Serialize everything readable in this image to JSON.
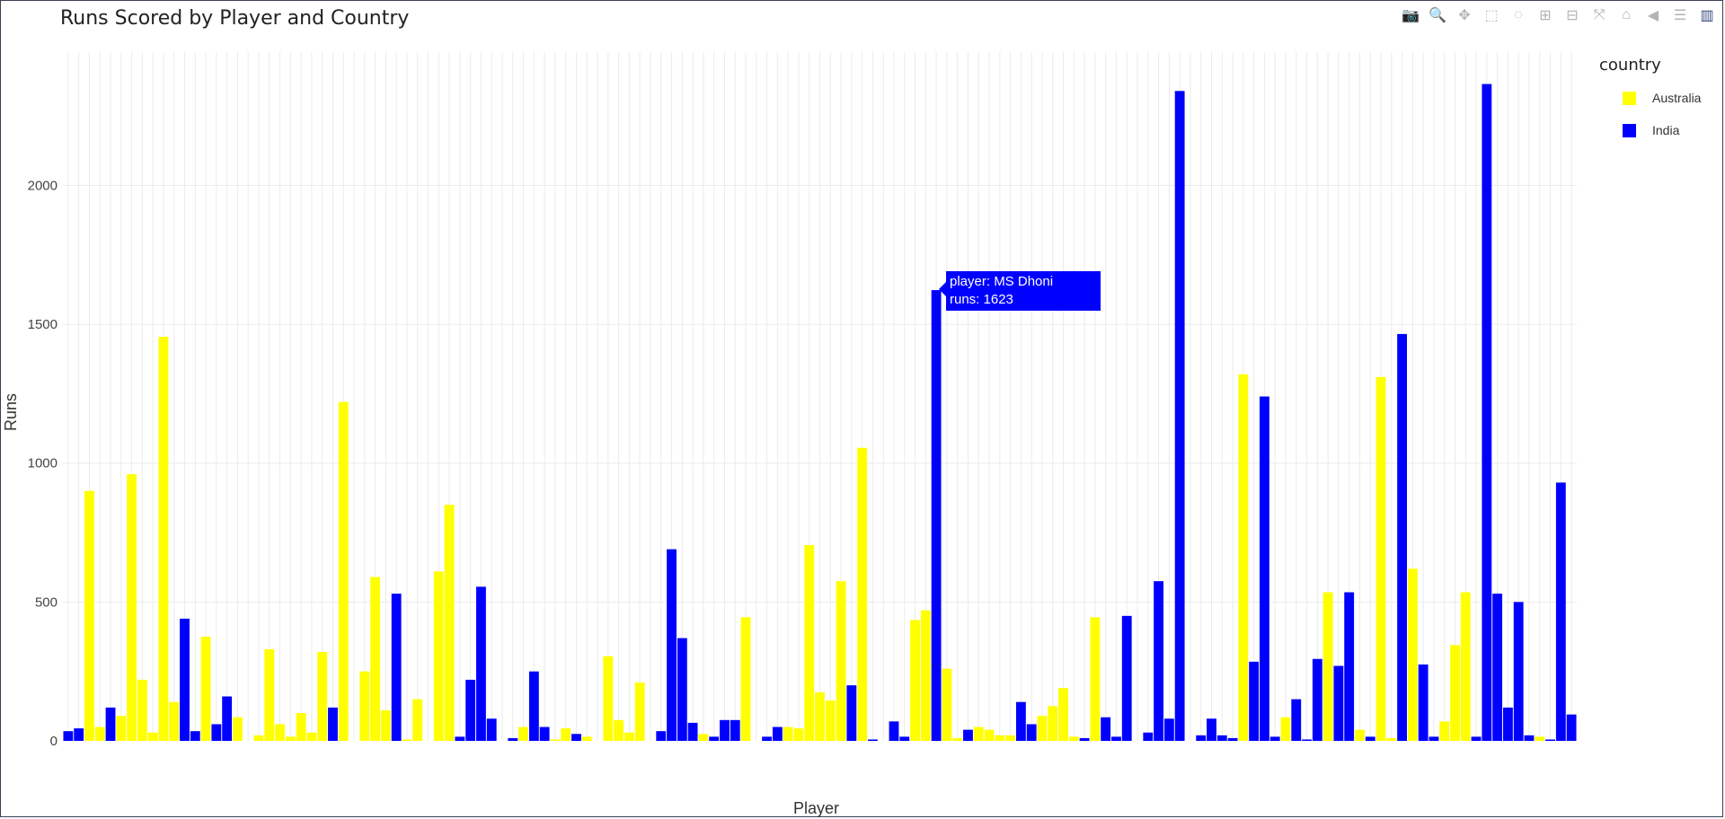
{
  "title": "Runs Scored by Player and Country",
  "modebar": [
    {
      "name": "camera-icon",
      "glyph": "📷"
    },
    {
      "name": "zoom-icon",
      "glyph": "🔍"
    },
    {
      "name": "pan-icon",
      "glyph": "✥"
    },
    {
      "name": "box-select-icon",
      "glyph": "⬚"
    },
    {
      "name": "lasso-icon",
      "glyph": "◌"
    },
    {
      "name": "zoom-in-icon",
      "glyph": "⊞"
    },
    {
      "name": "zoom-out-icon",
      "glyph": "⊟"
    },
    {
      "name": "autoscale-icon",
      "glyph": "⤧"
    },
    {
      "name": "home-icon",
      "glyph": "⌂"
    },
    {
      "name": "spike-lines-icon",
      "glyph": "◀"
    },
    {
      "name": "compare-hover-icon",
      "glyph": "☰"
    },
    {
      "name": "plotly-logo-icon",
      "glyph": "▥"
    }
  ],
  "legend": {
    "title": "country",
    "items": [
      {
        "label": "Australia",
        "color": "#ffff00"
      },
      {
        "label": "India",
        "color": "#0000ff"
      }
    ]
  },
  "tooltip": {
    "line1": "player: MS Dhoni",
    "line2": "runs: 1623"
  },
  "chart_data": {
    "type": "bar",
    "title": "Runs Scored by Player and Country",
    "xlabel": "Player",
    "ylabel": "Runs",
    "ylim": [
      0,
      2480
    ],
    "yticks": [
      0,
      500,
      1000,
      1500,
      2000
    ],
    "grid": true,
    "legend_position": "top-right",
    "series": [
      {
        "name": "Australia",
        "color": "#ffff00"
      },
      {
        "name": "India",
        "color": "#0000ff"
      }
    ],
    "bars": [
      {
        "v": 35,
        "s": 1
      },
      {
        "v": 45,
        "s": 1
      },
      {
        "v": 900,
        "s": 0
      },
      {
        "v": 50,
        "s": 0
      },
      {
        "v": 120,
        "s": 1
      },
      {
        "v": 90,
        "s": 0
      },
      {
        "v": 960,
        "s": 0
      },
      {
        "v": 220,
        "s": 0
      },
      {
        "v": 30,
        "s": 0
      },
      {
        "v": 1455,
        "s": 0
      },
      {
        "v": 140,
        "s": 0
      },
      {
        "v": 440,
        "s": 1
      },
      {
        "v": 35,
        "s": 1
      },
      {
        "v": 375,
        "s": 0
      },
      {
        "v": 60,
        "s": 1
      },
      {
        "v": 160,
        "s": 1
      },
      {
        "v": 85,
        "s": 0
      },
      {
        "v": 0,
        "s": 0
      },
      {
        "v": 20,
        "s": 0
      },
      {
        "v": 330,
        "s": 0
      },
      {
        "v": 60,
        "s": 0
      },
      {
        "v": 15,
        "s": 0
      },
      {
        "v": 100,
        "s": 0
      },
      {
        "v": 30,
        "s": 0
      },
      {
        "v": 320,
        "s": 0
      },
      {
        "v": 120,
        "s": 1
      },
      {
        "v": 1220,
        "s": 0
      },
      {
        "v": 0,
        "s": 0
      },
      {
        "v": 250,
        "s": 0
      },
      {
        "v": 590,
        "s": 0
      },
      {
        "v": 110,
        "s": 0
      },
      {
        "v": 530,
        "s": 1
      },
      {
        "v": 5,
        "s": 0
      },
      {
        "v": 150,
        "s": 0
      },
      {
        "v": 0,
        "s": 0
      },
      {
        "v": 610,
        "s": 0
      },
      {
        "v": 850,
        "s": 0
      },
      {
        "v": 15,
        "s": 1
      },
      {
        "v": 220,
        "s": 1
      },
      {
        "v": 555,
        "s": 1
      },
      {
        "v": 80,
        "s": 1
      },
      {
        "v": 0,
        "s": 0
      },
      {
        "v": 10,
        "s": 1
      },
      {
        "v": 50,
        "s": 0
      },
      {
        "v": 250,
        "s": 1
      },
      {
        "v": 50,
        "s": 1
      },
      {
        "v": 5,
        "s": 0
      },
      {
        "v": 45,
        "s": 0
      },
      {
        "v": 25,
        "s": 1
      },
      {
        "v": 15,
        "s": 0
      },
      {
        "v": 0,
        "s": 0
      },
      {
        "v": 305,
        "s": 0
      },
      {
        "v": 75,
        "s": 0
      },
      {
        "v": 30,
        "s": 0
      },
      {
        "v": 210,
        "s": 0
      },
      {
        "v": 0,
        "s": 0
      },
      {
        "v": 35,
        "s": 1
      },
      {
        "v": 690,
        "s": 1
      },
      {
        "v": 370,
        "s": 1
      },
      {
        "v": 65,
        "s": 1
      },
      {
        "v": 25,
        "s": 0
      },
      {
        "v": 15,
        "s": 1
      },
      {
        "v": 75,
        "s": 1
      },
      {
        "v": 75,
        "s": 1
      },
      {
        "v": 445,
        "s": 0
      },
      {
        "v": 0,
        "s": 0
      },
      {
        "v": 15,
        "s": 1
      },
      {
        "v": 50,
        "s": 1
      },
      {
        "v": 50,
        "s": 0
      },
      {
        "v": 45,
        "s": 0
      },
      {
        "v": 705,
        "s": 0
      },
      {
        "v": 175,
        "s": 0
      },
      {
        "v": 145,
        "s": 0
      },
      {
        "v": 575,
        "s": 0
      },
      {
        "v": 200,
        "s": 1
      },
      {
        "v": 1055,
        "s": 0
      },
      {
        "v": 5,
        "s": 1
      },
      {
        "v": 0,
        "s": 0
      },
      {
        "v": 70,
        "s": 1
      },
      {
        "v": 15,
        "s": 1
      },
      {
        "v": 435,
        "s": 0
      },
      {
        "v": 470,
        "s": 0
      },
      {
        "v": 1623,
        "s": 1
      },
      {
        "v": 260,
        "s": 0
      },
      {
        "v": 10,
        "s": 0
      },
      {
        "v": 40,
        "s": 1
      },
      {
        "v": 50,
        "s": 0
      },
      {
        "v": 40,
        "s": 0
      },
      {
        "v": 20,
        "s": 0
      },
      {
        "v": 20,
        "s": 0
      },
      {
        "v": 140,
        "s": 1
      },
      {
        "v": 60,
        "s": 1
      },
      {
        "v": 90,
        "s": 0
      },
      {
        "v": 125,
        "s": 0
      },
      {
        "v": 190,
        "s": 0
      },
      {
        "v": 15,
        "s": 0
      },
      {
        "v": 10,
        "s": 1
      },
      {
        "v": 445,
        "s": 0
      },
      {
        "v": 85,
        "s": 1
      },
      {
        "v": 15,
        "s": 1
      },
      {
        "v": 450,
        "s": 1
      },
      {
        "v": 0,
        "s": 0
      },
      {
        "v": 30,
        "s": 1
      },
      {
        "v": 575,
        "s": 1
      },
      {
        "v": 80,
        "s": 1
      },
      {
        "v": 2340,
        "s": 1
      },
      {
        "v": 0,
        "s": 0
      },
      {
        "v": 20,
        "s": 1
      },
      {
        "v": 80,
        "s": 1
      },
      {
        "v": 20,
        "s": 1
      },
      {
        "v": 10,
        "s": 1
      },
      {
        "v": 1320,
        "s": 0
      },
      {
        "v": 285,
        "s": 1
      },
      {
        "v": 1240,
        "s": 1
      },
      {
        "v": 15,
        "s": 1
      },
      {
        "v": 85,
        "s": 0
      },
      {
        "v": 150,
        "s": 1
      },
      {
        "v": 5,
        "s": 1
      },
      {
        "v": 295,
        "s": 1
      },
      {
        "v": 535,
        "s": 0
      },
      {
        "v": 270,
        "s": 1
      },
      {
        "v": 535,
        "s": 1
      },
      {
        "v": 40,
        "s": 0
      },
      {
        "v": 15,
        "s": 1
      },
      {
        "v": 1310,
        "s": 0
      },
      {
        "v": 10,
        "s": 0
      },
      {
        "v": 1465,
        "s": 1
      },
      {
        "v": 620,
        "s": 0
      },
      {
        "v": 275,
        "s": 1
      },
      {
        "v": 15,
        "s": 1
      },
      {
        "v": 70,
        "s": 0
      },
      {
        "v": 345,
        "s": 0
      },
      {
        "v": 535,
        "s": 0
      },
      {
        "v": 15,
        "s": 1
      },
      {
        "v": 2365,
        "s": 1
      },
      {
        "v": 530,
        "s": 1
      },
      {
        "v": 120,
        "s": 1
      },
      {
        "v": 500,
        "s": 1
      },
      {
        "v": 20,
        "s": 1
      },
      {
        "v": 15,
        "s": 0
      },
      {
        "v": 5,
        "s": 1
      },
      {
        "v": 930,
        "s": 1
      },
      {
        "v": 95,
        "s": 1
      }
    ]
  }
}
